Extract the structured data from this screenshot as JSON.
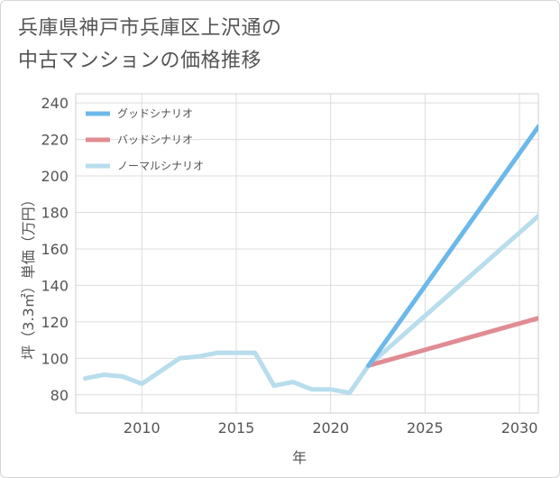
{
  "title": {
    "line1": "兵庫県神戸市兵庫区上沢通の",
    "line2": "中古マンションの価格推移"
  },
  "chart_data": {
    "type": "line",
    "xlabel": "年",
    "ylabel": "坪（3.3㎡）単価（万円）",
    "xlim": [
      2006.5,
      2031
    ],
    "ylim": [
      70,
      245
    ],
    "xticks": [
      2010,
      2015,
      2020,
      2025,
      2030
    ],
    "yticks": [
      80,
      100,
      120,
      140,
      160,
      180,
      200,
      220,
      240
    ],
    "grid": true,
    "legend_position": "top-left",
    "series": [
      {
        "name": "グッドシナリオ",
        "color": "#6cb8ea",
        "x": [
          2022,
          2031
        ],
        "y": [
          96,
          227
        ]
      },
      {
        "name": "バッドシナリオ",
        "color": "#e08c92",
        "x": [
          2022,
          2031
        ],
        "y": [
          96,
          122
        ]
      },
      {
        "name": "ノーマルシナリオ",
        "color": "#b8dded",
        "x": [
          2007,
          2008,
          2009,
          2010,
          2011,
          2012,
          2013,
          2014,
          2015,
          2016,
          2017,
          2018,
          2019,
          2020,
          2021,
          2022,
          2031
        ],
        "y": [
          89,
          91,
          90,
          86,
          93,
          100,
          101,
          103,
          103,
          103,
          85,
          87,
          83,
          83,
          81,
          96,
          178
        ]
      }
    ]
  }
}
